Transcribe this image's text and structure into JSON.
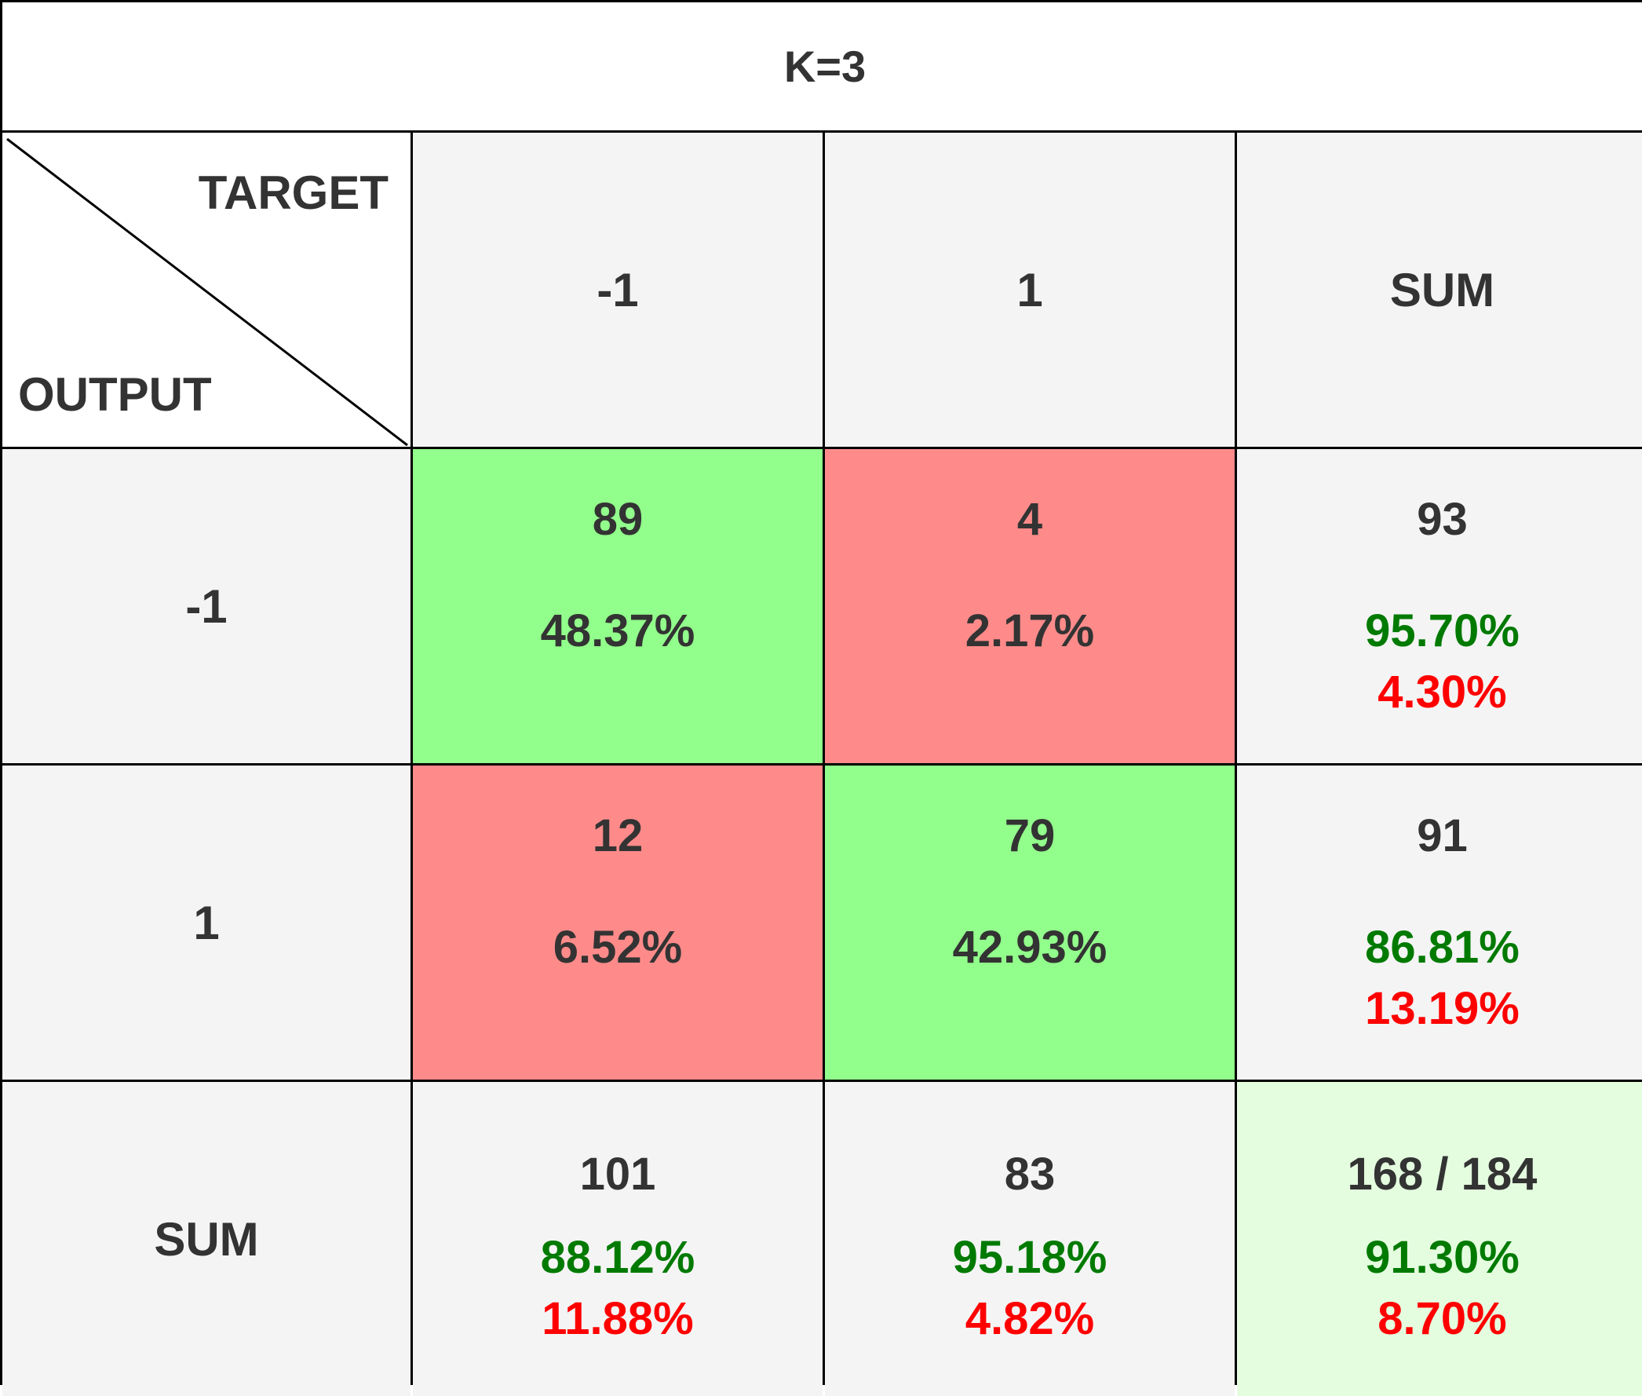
{
  "chart_data": {
    "type": "table",
    "title": "K=3",
    "corner": {
      "top_label": "TARGET",
      "bottom_label": "OUTPUT"
    },
    "column_headers": [
      "-1",
      "1",
      "SUM"
    ],
    "row_headers": [
      "-1",
      "1",
      "SUM"
    ],
    "matrix": [
      [
        {
          "count": "89",
          "percent": "48.37%"
        },
        {
          "count": "4",
          "percent": "2.17%"
        }
      ],
      [
        {
          "count": "12",
          "percent": "6.52%"
        },
        {
          "count": "79",
          "percent": "42.93%"
        }
      ]
    ],
    "row_sums": [
      {
        "count": "93",
        "correct": "95.70%",
        "wrong": "4.30%"
      },
      {
        "count": "91",
        "correct": "86.81%",
        "wrong": "13.19%"
      }
    ],
    "column_sums": [
      {
        "count": "101",
        "correct": "88.12%",
        "wrong": "11.88%"
      },
      {
        "count": "83",
        "correct": "95.18%",
        "wrong": "4.82%"
      }
    ],
    "total": {
      "count": "168 / 184",
      "correct": "91.30%",
      "wrong": "8.70%"
    }
  },
  "colors": {
    "correct_cell": "#92fe8b",
    "wrong_cell": "#fe8b8a",
    "total_cell": "#e4fddf",
    "header_cell": "#f4f4f4",
    "correct_text": "#007a00",
    "wrong_text": "#ff0000",
    "text": "#333333",
    "grid_line": "#000000"
  }
}
